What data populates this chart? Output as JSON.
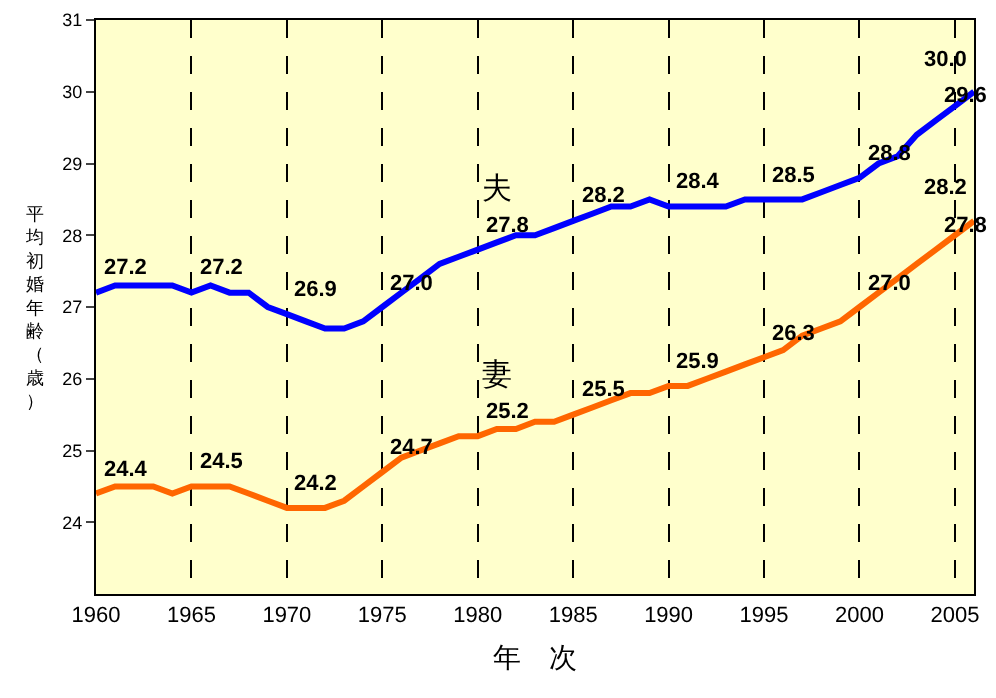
{
  "chart_data": {
    "type": "line",
    "xlabel": "年　次",
    "ylabel": "平均初婚年齢（歳）",
    "x": [
      1960,
      1961,
      1962,
      1963,
      1964,
      1965,
      1966,
      1967,
      1968,
      1969,
      1970,
      1971,
      1972,
      1973,
      1974,
      1975,
      1976,
      1977,
      1978,
      1979,
      1980,
      1981,
      1982,
      1983,
      1984,
      1985,
      1986,
      1987,
      1988,
      1989,
      1990,
      1991,
      1992,
      1993,
      1994,
      1995,
      1996,
      1997,
      1998,
      1999,
      2000,
      2001,
      2002,
      2003,
      2004,
      2005,
      2006
    ],
    "series": [
      {
        "name": "夫",
        "color": "#0000ff",
        "values": [
          27.2,
          27.3,
          27.3,
          27.3,
          27.3,
          27.2,
          27.3,
          27.2,
          27.2,
          27.0,
          26.9,
          26.8,
          26.7,
          26.7,
          26.8,
          27.0,
          27.2,
          27.4,
          27.6,
          27.7,
          27.8,
          27.9,
          28.0,
          28.0,
          28.1,
          28.2,
          28.3,
          28.4,
          28.4,
          28.5,
          28.4,
          28.4,
          28.4,
          28.4,
          28.5,
          28.5,
          28.5,
          28.5,
          28.6,
          28.7,
          28.8,
          29.0,
          29.1,
          29.4,
          29.6,
          29.8,
          30.0
        ]
      },
      {
        "name": "妻",
        "color": "#ff6600",
        "values": [
          24.4,
          24.5,
          24.5,
          24.5,
          24.4,
          24.5,
          24.5,
          24.5,
          24.4,
          24.3,
          24.2,
          24.2,
          24.2,
          24.3,
          24.5,
          24.7,
          24.9,
          25.0,
          25.1,
          25.2,
          25.2,
          25.3,
          25.3,
          25.4,
          25.4,
          25.5,
          25.6,
          25.7,
          25.8,
          25.8,
          25.9,
          25.9,
          26.0,
          26.1,
          26.2,
          26.3,
          26.4,
          26.6,
          26.7,
          26.8,
          27.0,
          27.2,
          27.4,
          27.6,
          27.8,
          28.0,
          28.2
        ]
      }
    ],
    "xlim": [
      1960,
      2006
    ],
    "xticks": [
      1960,
      1965,
      1970,
      1975,
      1980,
      1985,
      1990,
      1995,
      2000,
      2005
    ],
    "ylim": [
      23,
      31
    ],
    "yticks": [
      24,
      25,
      26,
      27,
      28,
      29,
      30,
      31
    ],
    "grid": "x",
    "legend": false,
    "marker": "none",
    "line_style": "solid",
    "annotations": [
      {
        "text": "27.2",
        "x": 1960,
        "y": 27.2
      },
      {
        "text": "27.2",
        "x": 1965,
        "y": 27.2
      },
      {
        "text": "26.9",
        "x": 1970,
        "y": 26.9
      },
      {
        "text": "27.0",
        "x": 1975,
        "y": 27.0
      },
      {
        "text": "27.8",
        "x": 1980,
        "y": 27.8
      },
      {
        "text": "28.2",
        "x": 1985,
        "y": 28.2
      },
      {
        "text": "28.4",
        "x": 1990,
        "y": 28.4
      },
      {
        "text": "28.5",
        "x": 1995,
        "y": 28.5
      },
      {
        "text": "28.8",
        "x": 2000,
        "y": 28.8
      },
      {
        "text": "29.6",
        "x": 2004,
        "y": 29.6
      },
      {
        "text": "30.0",
        "x": 2006,
        "y": 30.0
      },
      {
        "text": "24.4",
        "x": 1960,
        "y": 24.4
      },
      {
        "text": "24.5",
        "x": 1965,
        "y": 24.5
      },
      {
        "text": "24.2",
        "x": 1970,
        "y": 24.2
      },
      {
        "text": "24.7",
        "x": 1975,
        "y": 24.7
      },
      {
        "text": "25.2",
        "x": 1980,
        "y": 25.2
      },
      {
        "text": "25.5",
        "x": 1985,
        "y": 25.5
      },
      {
        "text": "25.9",
        "x": 1990,
        "y": 25.9
      },
      {
        "text": "26.3",
        "x": 1995,
        "y": 26.3
      },
      {
        "text": "27.0",
        "x": 2000,
        "y": 27.0
      },
      {
        "text": "27.8",
        "x": 2004,
        "y": 27.8
      },
      {
        "text": "28.2",
        "x": 2006,
        "y": 28.2
      }
    ]
  }
}
